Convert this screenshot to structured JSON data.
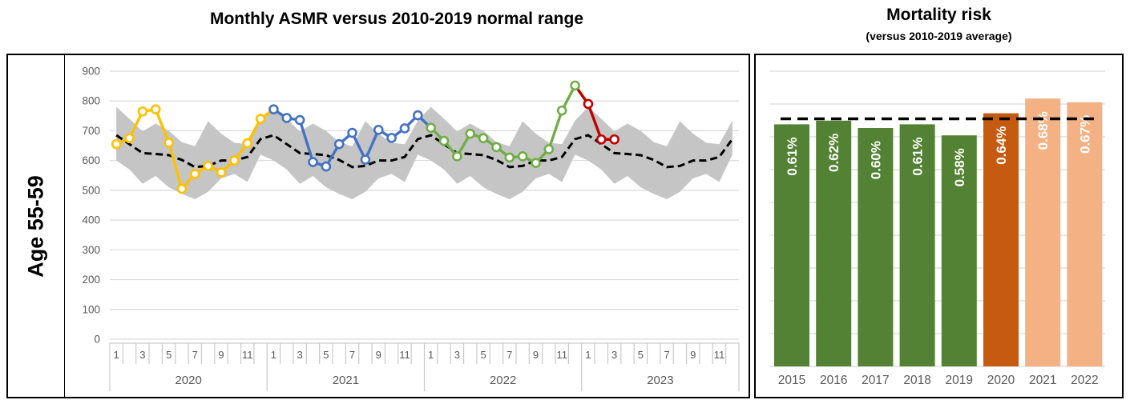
{
  "header": {
    "left_chart_title": "Monthly ASMR versus 2010-2019 normal range",
    "right_chart_title": "Mortality risk",
    "right_chart_subtitle": "(versus 2010-2019 average)",
    "row_label": "Age 55-59"
  },
  "colors": {
    "band": "#c5c5c5",
    "grid": "#d9d9d9",
    "axis_text": "#595959",
    "average_line": "#000000",
    "border": "#000000",
    "bar_label_text": "#ffffff"
  },
  "chart_data": [
    {
      "type": "line",
      "title": "Monthly ASMR versus 2010-2019 normal range",
      "ylabel": "",
      "ylim": [
        0,
        900
      ],
      "ytick_step": 100,
      "grid": "on",
      "legend": "none",
      "years": [
        "2020",
        "2021",
        "2022",
        "2023"
      ],
      "month_tick_labels": [
        "1",
        "3",
        "5",
        "7",
        "9",
        "11"
      ],
      "series": [
        {
          "name": "2020",
          "color": "#FFC000",
          "values": [
            655,
            675,
            765,
            772,
            660,
            505,
            555,
            582,
            560,
            600,
            658,
            740
          ]
        },
        {
          "name": "2021",
          "color": "#4472C4",
          "values": [
            772,
            743,
            736,
            595,
            580,
            655,
            693,
            603,
            703,
            676,
            708,
            752
          ]
        },
        {
          "name": "2022",
          "color": "#70AD47",
          "values": [
            710,
            666,
            614,
            690,
            675,
            645,
            610,
            614,
            592,
            638,
            768,
            852
          ]
        },
        {
          "name": "2023",
          "color": "#C00000",
          "values": [
            790,
            671,
            671
          ]
        }
      ],
      "normal_range_2010_2019": {
        "upper": [
          780,
          740,
          698,
          724,
          700,
          662,
          648,
          732,
          690,
          660,
          655,
          734
        ],
        "lower": [
          600,
          570,
          522,
          548,
          510,
          488,
          470,
          495,
          540,
          555,
          528,
          620
        ],
        "average": [
          685,
          655,
          625,
          622,
          618,
          602,
          578,
          582,
          600,
          600,
          612,
          672
        ]
      }
    },
    {
      "type": "bar",
      "title": "Mortality risk",
      "subtitle": "(versus 2010-2019 average)",
      "categories": [
        "2015",
        "2016",
        "2017",
        "2018",
        "2019",
        "2020",
        "2021",
        "2022"
      ],
      "values_pct": [
        0.61,
        0.62,
        0.6,
        0.61,
        0.58,
        0.64,
        0.68,
        0.67
      ],
      "labels": [
        "0.61%",
        "0.62%",
        "0.60%",
        "0.61%",
        "0.58%",
        "0.64%",
        "0.68%",
        "0.67%"
      ],
      "bar_colors": [
        "#548235",
        "#548235",
        "#548235",
        "#548235",
        "#548235",
        "#C55A11",
        "#F4B183",
        "#F4B183"
      ],
      "average_line_pct": 0.625,
      "grid": "on",
      "legend": "none"
    }
  ]
}
